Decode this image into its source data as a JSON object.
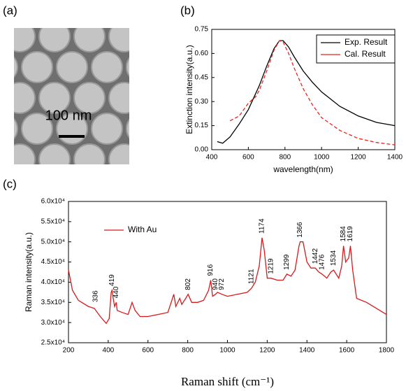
{
  "image_panel": {
    "panel_label": "(a)",
    "scale_bar_label": "100 nm"
  },
  "chart_data": [
    {
      "type": "line",
      "panel_label": "(b)",
      "xlabel": "wavelength(nm)",
      "ylabel": "Extinction intensity(a.u.)",
      "x": [
        430,
        460,
        500,
        550,
        600,
        620,
        640,
        660,
        700,
        740,
        770,
        790,
        820,
        850,
        900,
        950,
        1000,
        1100,
        1200,
        1300,
        1400
      ],
      "xlim": [
        400,
        1400
      ],
      "xticks": [
        400,
        600,
        800,
        1000,
        1200,
        1400
      ],
      "ylim": [
        0,
        0.75
      ],
      "yticks": [
        {
          "value": 0,
          "label": "0.00"
        },
        {
          "value": 0.15,
          "label": "0.15"
        },
        {
          "value": 0.3,
          "label": "0.30"
        },
        {
          "value": 0.45,
          "label": "0.45"
        },
        {
          "value": 0.6,
          "label": "0.60"
        },
        {
          "value": 0.75,
          "label": "0.75"
        }
      ],
      "legend": "upper right",
      "series": [
        {
          "name": "Exp. Result",
          "color": "#000000",
          "dashed": false,
          "values": [
            0.05,
            0.04,
            0.08,
            0.16,
            0.25,
            0.3,
            0.35,
            0.4,
            0.52,
            0.63,
            0.68,
            0.68,
            0.64,
            0.58,
            0.49,
            0.42,
            0.36,
            0.27,
            0.21,
            0.17,
            0.15
          ]
        },
        {
          "name": "Cal. Result",
          "color": "#e8251f",
          "dashed": true,
          "values": [
            null,
            null,
            0.18,
            0.21,
            0.29,
            0.31,
            0.33,
            0.37,
            0.49,
            0.62,
            0.68,
            0.67,
            0.6,
            0.51,
            0.38,
            0.28,
            0.2,
            0.12,
            0.07,
            0.045,
            0.03
          ]
        }
      ]
    },
    {
      "type": "line",
      "panel_label": "(c)",
      "xlabel": "Raman shift (cm⁻¹)",
      "ylabel": "Raman intensity(a.u.)",
      "x": [
        200,
        220,
        250,
        300,
        330,
        360,
        390,
        405,
        415,
        419,
        425,
        432,
        440,
        445,
        470,
        500,
        520,
        535,
        560,
        600,
        650,
        700,
        720,
        730,
        740,
        760,
        770,
        790,
        802,
        820,
        850,
        880,
        905,
        916,
        925,
        940,
        950,
        972,
        1000,
        1050,
        1100,
        1121,
        1140,
        1160,
        1174,
        1185,
        1200,
        1219,
        1250,
        1280,
        1299,
        1320,
        1340,
        1360,
        1366,
        1380,
        1400,
        1420,
        1442,
        1460,
        1476,
        1500,
        1520,
        1534,
        1560,
        1575,
        1584,
        1595,
        1610,
        1619,
        1630,
        1650,
        1700,
        1750,
        1800
      ],
      "xlim": [
        200,
        1800
      ],
      "xticks": [
        200,
        400,
        600,
        800,
        1000,
        1200,
        1400,
        1600,
        1800
      ],
      "ylim": [
        25000,
        60000
      ],
      "yticks": [
        {
          "value": 25000,
          "label": "2.5x10⁴"
        },
        {
          "value": 30000,
          "label": "3.0x10⁴"
        },
        {
          "value": 35000,
          "label": "3.5x10⁴"
        },
        {
          "value": 40000,
          "label": "4.0x10⁴"
        },
        {
          "value": 45000,
          "label": "4.5x10⁴"
        },
        {
          "value": 50000,
          "label": "5.0x10⁴"
        },
        {
          "value": 55000,
          "label": "5.5x10⁴"
        },
        {
          "value": 60000,
          "label": "6.0x10⁴"
        }
      ],
      "legend": "upper left",
      "series": [
        {
          "name": "With Au",
          "color": "#d7191c",
          "dashed": false,
          "values": [
            43000,
            38000,
            35500,
            34000,
            33500,
            31500,
            29800,
            31000,
            37500,
            38000,
            36000,
            34000,
            35000,
            33000,
            32500,
            32000,
            35000,
            33000,
            31500,
            31500,
            32000,
            32500,
            35500,
            37000,
            34000,
            36000,
            34500,
            36000,
            37000,
            35000,
            35000,
            35500,
            38000,
            40500,
            36500,
            37000,
            37500,
            37000,
            36500,
            37000,
            37500,
            38500,
            40000,
            44000,
            51000,
            48000,
            41000,
            41000,
            40500,
            40500,
            42000,
            41500,
            43000,
            49000,
            50000,
            50000,
            45000,
            43500,
            43500,
            42500,
            42000,
            41000,
            42500,
            43000,
            41000,
            44000,
            49000,
            45000,
            46000,
            49000,
            43000,
            36000,
            35000,
            33500,
            32000
          ]
        }
      ],
      "peaks": [
        {
          "x": 336,
          "y": 34000
        },
        {
          "x": 419,
          "y": 38000
        },
        {
          "x": 440,
          "y": 35000
        },
        {
          "x": 802,
          "y": 37000
        },
        {
          "x": 916,
          "y": 40500
        },
        {
          "x": 940,
          "y": 37000
        },
        {
          "x": 972,
          "y": 37000
        },
        {
          "x": 1121,
          "y": 38500
        },
        {
          "x": 1174,
          "y": 51000
        },
        {
          "x": 1219,
          "y": 41000
        },
        {
          "x": 1299,
          "y": 42000
        },
        {
          "x": 1366,
          "y": 50000
        },
        {
          "x": 1442,
          "y": 43500
        },
        {
          "x": 1476,
          "y": 42000
        },
        {
          "x": 1534,
          "y": 43000
        },
        {
          "x": 1584,
          "y": 49000
        },
        {
          "x": 1619,
          "y": 49000
        }
      ]
    }
  ]
}
